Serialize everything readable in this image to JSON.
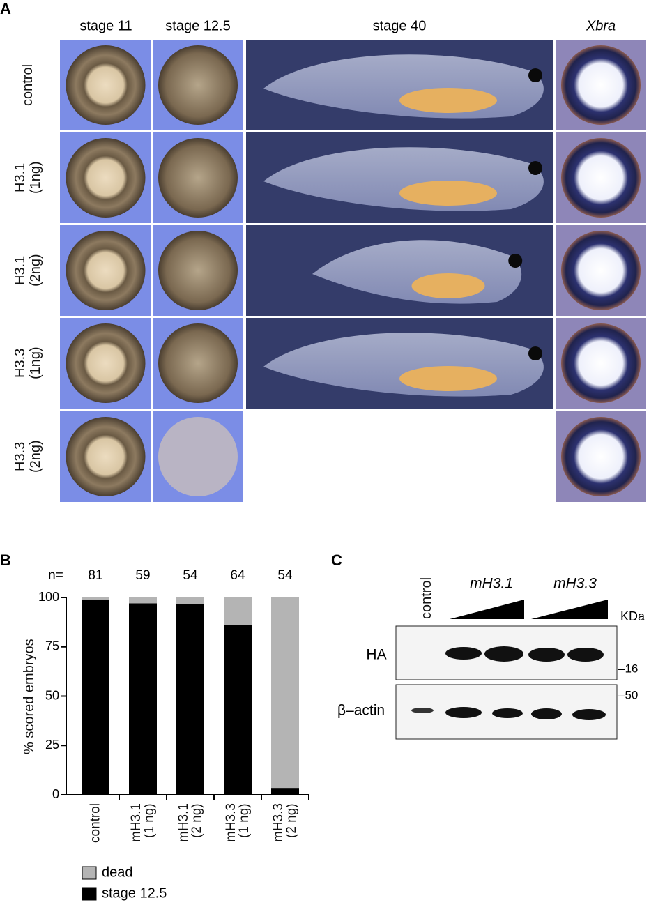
{
  "panel_a": {
    "label": "A",
    "columns": [
      "stage 11",
      "stage 12.5",
      "stage 40",
      "Xbra"
    ],
    "rows": [
      "control",
      "H3.1\n(1ng)",
      "H3.1\n(2ng)",
      "H3.3\n(1ng)",
      "H3.3\n(2ng)"
    ]
  },
  "chart_data": {
    "type": "bar",
    "stacked": true,
    "label": "B",
    "n_label": "n=",
    "n_values": [
      81,
      59,
      54,
      64,
      54
    ],
    "y_label": "% scored embryos",
    "categories": [
      "control",
      "mH3.1\n(1 ng)",
      "mH3.1\n(2 ng)",
      "mH3.3\n(1 ng)",
      "mH3.3\n(2 ng)"
    ],
    "series": [
      {
        "name": "dead",
        "color": "#b4b4b4",
        "values": [
          1,
          3,
          3.5,
          14,
          96.5
        ]
      },
      {
        "name": "stage 12.5",
        "color": "#000000",
        "values": [
          99,
          97,
          96.5,
          86,
          3.5
        ]
      }
    ],
    "ylim": [
      0,
      100
    ],
    "yticks": [
      0,
      25,
      50,
      75,
      100
    ]
  },
  "panel_c": {
    "label": "C",
    "lanes": [
      "control",
      "mH3.1",
      "mH3.3"
    ],
    "unit": "KDa",
    "blots": [
      "HA",
      "β–actin"
    ],
    "markers": [
      "–16",
      "–50"
    ]
  }
}
